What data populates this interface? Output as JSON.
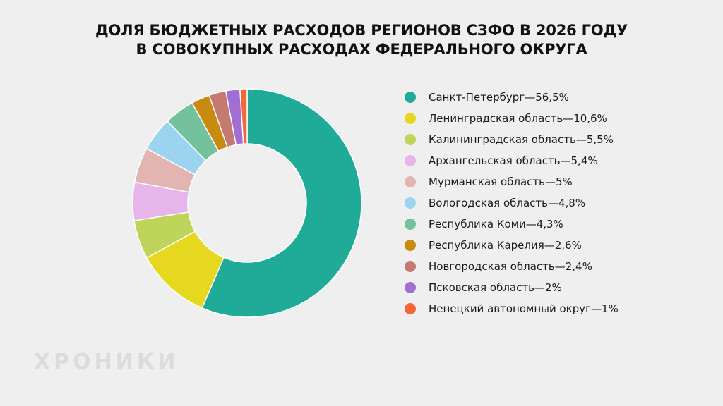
{
  "chart_data": {
    "type": "pie",
    "title": [
      "ДОЛЯ БЮДЖЕТНЫХ РАСХОДОВ РЕГИОНОВ СЗФО В 2026 ГОДУ",
      "В СОВОКУПНЫХ РАСХОДАХ ФЕДЕРАЛЬНОГО ОКРУГА"
    ],
    "legend_position": "right",
    "donut": true,
    "slices": [
      {
        "label": "Санкт-Петербург—56,5%",
        "value": 56.5,
        "color": "#20ab99"
      },
      {
        "label": "Ленинградская область—10,6%",
        "value": 10.6,
        "color": "#e6d81f"
      },
      {
        "label": "Калининградская область—5,5%",
        "value": 5.5,
        "color": "#bed45a"
      },
      {
        "label": "Архангельская область—5,4%",
        "value": 5.4,
        "color": "#e6b6ea"
      },
      {
        "label": "Мурманская область—5%",
        "value": 5.0,
        "color": "#e2b5b3"
      },
      {
        "label": "Вологодская область—4,8%",
        "value": 4.8,
        "color": "#9cd3ee"
      },
      {
        "label": "Республика Коми—4,3%",
        "value": 4.3,
        "color": "#73c19d"
      },
      {
        "label": "Республика Карелия—2,6%",
        "value": 2.6,
        "color": "#c98a12"
      },
      {
        "label": "Новгородская область—2,4%",
        "value": 2.4,
        "color": "#c47a72"
      },
      {
        "label": "Псковская область—2%",
        "value": 2.0,
        "color": "#a26ed3"
      },
      {
        "label": "Ненецкий автономный округ—1%",
        "value": 1.0,
        "color": "#f56638"
      }
    ]
  },
  "watermark": "ХРОНИКИ"
}
